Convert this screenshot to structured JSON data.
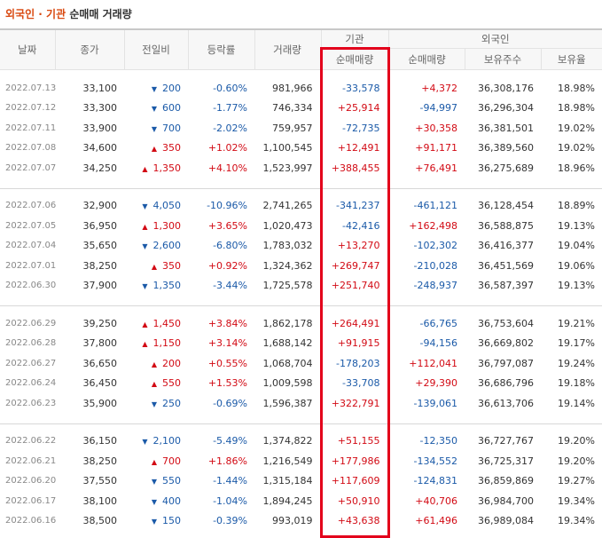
{
  "title": {
    "highlight": "외국인 · 기관",
    "text": "순매매 거래량"
  },
  "table": {
    "header": {
      "top": [
        "날짜",
        "종가",
        "전일비",
        "등락률",
        "거래량",
        "기관",
        "외국인"
      ],
      "sub": [
        "순매매량",
        "순매매량",
        "보유주수",
        "보유율"
      ]
    },
    "groups": [
      [
        {
          "date": "2022.07.13",
          "close": "33,100",
          "dir": "down",
          "change": "200",
          "rate": "-0.60%",
          "volume": "981,966",
          "institution": "-33,578",
          "foreign": "+4,372",
          "holdings": "36,308,176",
          "ratio": "18.98%"
        },
        {
          "date": "2022.07.12",
          "close": "33,300",
          "dir": "down",
          "change": "600",
          "rate": "-1.77%",
          "volume": "746,334",
          "institution": "+25,914",
          "foreign": "-94,997",
          "holdings": "36,296,304",
          "ratio": "18.98%"
        },
        {
          "date": "2022.07.11",
          "close": "33,900",
          "dir": "down",
          "change": "700",
          "rate": "-2.02%",
          "volume": "759,957",
          "institution": "-72,735",
          "foreign": "+30,358",
          "holdings": "36,381,501",
          "ratio": "19.02%"
        },
        {
          "date": "2022.07.08",
          "close": "34,600",
          "dir": "up",
          "change": "350",
          "rate": "+1.02%",
          "volume": "1,100,545",
          "institution": "+12,491",
          "foreign": "+91,171",
          "holdings": "36,389,560",
          "ratio": "19.02%"
        },
        {
          "date": "2022.07.07",
          "close": "34,250",
          "dir": "up",
          "change": "1,350",
          "rate": "+4.10%",
          "volume": "1,523,997",
          "institution": "+388,455",
          "foreign": "+76,491",
          "holdings": "36,275,689",
          "ratio": "18.96%"
        }
      ],
      [
        {
          "date": "2022.07.06",
          "close": "32,900",
          "dir": "down",
          "change": "4,050",
          "rate": "-10.96%",
          "volume": "2,741,265",
          "institution": "-341,237",
          "foreign": "-461,121",
          "holdings": "36,128,454",
          "ratio": "18.89%"
        },
        {
          "date": "2022.07.05",
          "close": "36,950",
          "dir": "up",
          "change": "1,300",
          "rate": "+3.65%",
          "volume": "1,020,473",
          "institution": "-42,416",
          "foreign": "+162,498",
          "holdings": "36,588,875",
          "ratio": "19.13%"
        },
        {
          "date": "2022.07.04",
          "close": "35,650",
          "dir": "down",
          "change": "2,600",
          "rate": "-6.80%",
          "volume": "1,783,032",
          "institution": "+13,270",
          "foreign": "-102,302",
          "holdings": "36,416,377",
          "ratio": "19.04%"
        },
        {
          "date": "2022.07.01",
          "close": "38,250",
          "dir": "up",
          "change": "350",
          "rate": "+0.92%",
          "volume": "1,324,362",
          "institution": "+269,747",
          "foreign": "-210,028",
          "holdings": "36,451,569",
          "ratio": "19.06%"
        },
        {
          "date": "2022.06.30",
          "close": "37,900",
          "dir": "down",
          "change": "1,350",
          "rate": "-3.44%",
          "volume": "1,725,578",
          "institution": "+251,740",
          "foreign": "-248,937",
          "holdings": "36,587,397",
          "ratio": "19.13%"
        }
      ],
      [
        {
          "date": "2022.06.29",
          "close": "39,250",
          "dir": "up",
          "change": "1,450",
          "rate": "+3.84%",
          "volume": "1,862,178",
          "institution": "+264,491",
          "foreign": "-66,765",
          "holdings": "36,753,604",
          "ratio": "19.21%"
        },
        {
          "date": "2022.06.28",
          "close": "37,800",
          "dir": "up",
          "change": "1,150",
          "rate": "+3.14%",
          "volume": "1,688,142",
          "institution": "+91,915",
          "foreign": "-94,156",
          "holdings": "36,669,802",
          "ratio": "19.17%"
        },
        {
          "date": "2022.06.27",
          "close": "36,650",
          "dir": "up",
          "change": "200",
          "rate": "+0.55%",
          "volume": "1,068,704",
          "institution": "-178,203",
          "foreign": "+112,041",
          "holdings": "36,797,087",
          "ratio": "19.24%"
        },
        {
          "date": "2022.06.24",
          "close": "36,450",
          "dir": "up",
          "change": "550",
          "rate": "+1.53%",
          "volume": "1,009,598",
          "institution": "-33,708",
          "foreign": "+29,390",
          "holdings": "36,686,796",
          "ratio": "19.18%"
        },
        {
          "date": "2022.06.23",
          "close": "35,900",
          "dir": "down",
          "change": "250",
          "rate": "-0.69%",
          "volume": "1,596,387",
          "institution": "+322,791",
          "foreign": "-139,061",
          "holdings": "36,613,706",
          "ratio": "19.14%"
        }
      ],
      [
        {
          "date": "2022.06.22",
          "close": "36,150",
          "dir": "down",
          "change": "2,100",
          "rate": "-5.49%",
          "volume": "1,374,822",
          "institution": "+51,155",
          "foreign": "-12,350",
          "holdings": "36,727,767",
          "ratio": "19.20%"
        },
        {
          "date": "2022.06.21",
          "close": "38,250",
          "dir": "up",
          "change": "700",
          "rate": "+1.86%",
          "volume": "1,216,549",
          "institution": "+177,986",
          "foreign": "-134,552",
          "holdings": "36,725,317",
          "ratio": "19.20%"
        },
        {
          "date": "2022.06.20",
          "close": "37,550",
          "dir": "down",
          "change": "550",
          "rate": "-1.44%",
          "volume": "1,315,184",
          "institution": "+117,609",
          "foreign": "-124,831",
          "holdings": "36,859,869",
          "ratio": "19.27%"
        },
        {
          "date": "2022.06.17",
          "close": "38,100",
          "dir": "down",
          "change": "400",
          "rate": "-1.04%",
          "volume": "1,894,245",
          "institution": "+50,910",
          "foreign": "+40,706",
          "holdings": "36,984,700",
          "ratio": "19.34%"
        },
        {
          "date": "2022.06.16",
          "close": "38,500",
          "dir": "down",
          "change": "150",
          "rate": "-0.39%",
          "volume": "993,019",
          "institution": "+43,638",
          "foreign": "+61,496",
          "holdings": "36,989,084",
          "ratio": "19.34%"
        }
      ]
    ]
  }
}
